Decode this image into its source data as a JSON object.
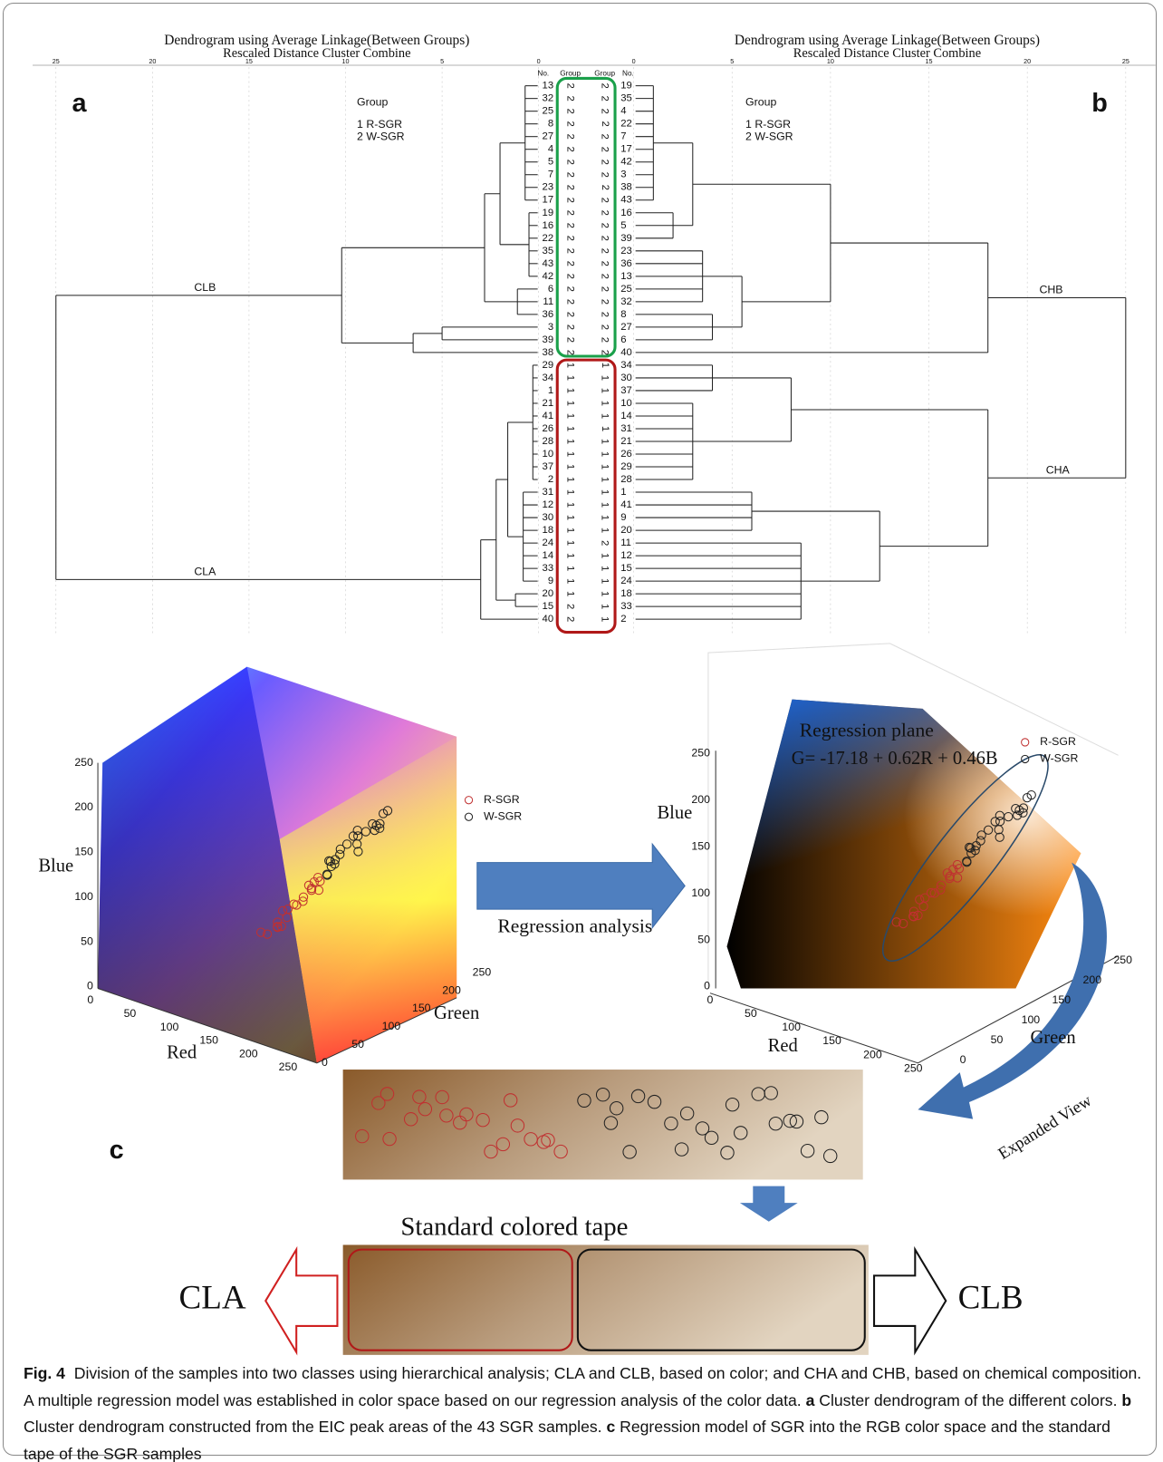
{
  "panel_a": {
    "letter": "a",
    "title": "Dendrogram using Average Linkage(Between Groups)",
    "subtitle": "Rescaled Distance Cluster Combine",
    "ticks": [
      25,
      20,
      15,
      10,
      5,
      0
    ],
    "col_no": "No.",
    "col_group": "Group",
    "legend_title": "Group",
    "legend": [
      "1  R-SGR",
      "2  W-SGR"
    ],
    "clusters": [
      "CLB",
      "CLA"
    ],
    "rows": [
      [
        13,
        2
      ],
      [
        32,
        2
      ],
      [
        25,
        2
      ],
      [
        8,
        2
      ],
      [
        27,
        2
      ],
      [
        4,
        2
      ],
      [
        5,
        2
      ],
      [
        7,
        2
      ],
      [
        23,
        2
      ],
      [
        17,
        2
      ],
      [
        19,
        2
      ],
      [
        16,
        2
      ],
      [
        22,
        2
      ],
      [
        35,
        2
      ],
      [
        43,
        2
      ],
      [
        42,
        2
      ],
      [
        6,
        2
      ],
      [
        11,
        2
      ],
      [
        36,
        2
      ],
      [
        3,
        2
      ],
      [
        39,
        2
      ],
      [
        38,
        2
      ],
      [
        29,
        1
      ],
      [
        34,
        1
      ],
      [
        1,
        1
      ],
      [
        21,
        1
      ],
      [
        41,
        1
      ],
      [
        26,
        1
      ],
      [
        28,
        1
      ],
      [
        10,
        1
      ],
      [
        37,
        1
      ],
      [
        2,
        1
      ],
      [
        31,
        1
      ],
      [
        12,
        1
      ],
      [
        30,
        1
      ],
      [
        18,
        1
      ],
      [
        24,
        1
      ],
      [
        14,
        1
      ],
      [
        33,
        1
      ],
      [
        9,
        1
      ],
      [
        20,
        1
      ],
      [
        15,
        2
      ],
      [
        40,
        2
      ]
    ]
  },
  "panel_b": {
    "letter": "b",
    "title": "Dendrogram using Average Linkage(Between Groups)",
    "subtitle": "Rescaled Distance Cluster Combine",
    "ticks": [
      0,
      5,
      10,
      15,
      20,
      25
    ],
    "col_group": "Group",
    "col_no": "No.",
    "legend_title": "Group",
    "legend": [
      "1  R-SGR",
      "2  W-SGR"
    ],
    "clusters": [
      "CHB",
      "CHA"
    ],
    "rows": [
      [
        2,
        19
      ],
      [
        2,
        35
      ],
      [
        2,
        4
      ],
      [
        2,
        22
      ],
      [
        2,
        7
      ],
      [
        2,
        17
      ],
      [
        2,
        42
      ],
      [
        2,
        3
      ],
      [
        2,
        38
      ],
      [
        2,
        43
      ],
      [
        2,
        16
      ],
      [
        2,
        5
      ],
      [
        2,
        39
      ],
      [
        2,
        23
      ],
      [
        2,
        36
      ],
      [
        2,
        13
      ],
      [
        2,
        25
      ],
      [
        2,
        32
      ],
      [
        2,
        8
      ],
      [
        2,
        27
      ],
      [
        2,
        6
      ],
      [
        2,
        40
      ],
      [
        1,
        34
      ],
      [
        1,
        30
      ],
      [
        1,
        37
      ],
      [
        1,
        10
      ],
      [
        1,
        14
      ],
      [
        1,
        31
      ],
      [
        1,
        21
      ],
      [
        1,
        26
      ],
      [
        1,
        29
      ],
      [
        1,
        28
      ],
      [
        1,
        1
      ],
      [
        1,
        41
      ],
      [
        1,
        9
      ],
      [
        1,
        20
      ],
      [
        2,
        11
      ],
      [
        1,
        12
      ],
      [
        1,
        15
      ],
      [
        1,
        24
      ],
      [
        1,
        18
      ],
      [
        1,
        33
      ],
      [
        1,
        2
      ]
    ]
  },
  "panel_c": {
    "letter": "c",
    "cube": {
      "axis_labels": [
        "Blue",
        "Red",
        "Green"
      ],
      "ticks": [
        0,
        50,
        100,
        150,
        200,
        250
      ],
      "legend": [
        "R-SGR",
        "W-SGR"
      ]
    },
    "arrow_label": "Regression analysis",
    "plane": {
      "title": "Regression plane",
      "equation": "G= -17.18 + 0.62R + 0.46B",
      "axis_labels": [
        "Blue",
        "Red",
        "Green"
      ],
      "ticks": [
        0,
        50,
        100,
        150,
        200,
        250
      ],
      "legend": [
        "R-SGR",
        "W-SGR"
      ]
    },
    "expanded_label": "Expanded View",
    "tape_title": "Standard colored tape",
    "classes": [
      "CLA",
      "CLB"
    ]
  },
  "caption": {
    "label": "Fig. 4",
    "text_1": "Division of the samples into two classes using hierarchical analysis; CLA and CLB, based on color; and CHA and CHB, based on chemical composition. A multiple regression model was established in color space based on our regression analysis of the color data.",
    "ref_a": "a",
    "text_2": "Cluster dendrogram of the different colors.",
    "ref_b": "b",
    "text_3": "Cluster dendrogram constructed from the EIC peak areas of the 43 SGR samples.",
    "ref_c": "c",
    "text_4": "Regression model of SGR into the RGB color space and the standard tape of the SGR samples"
  }
}
